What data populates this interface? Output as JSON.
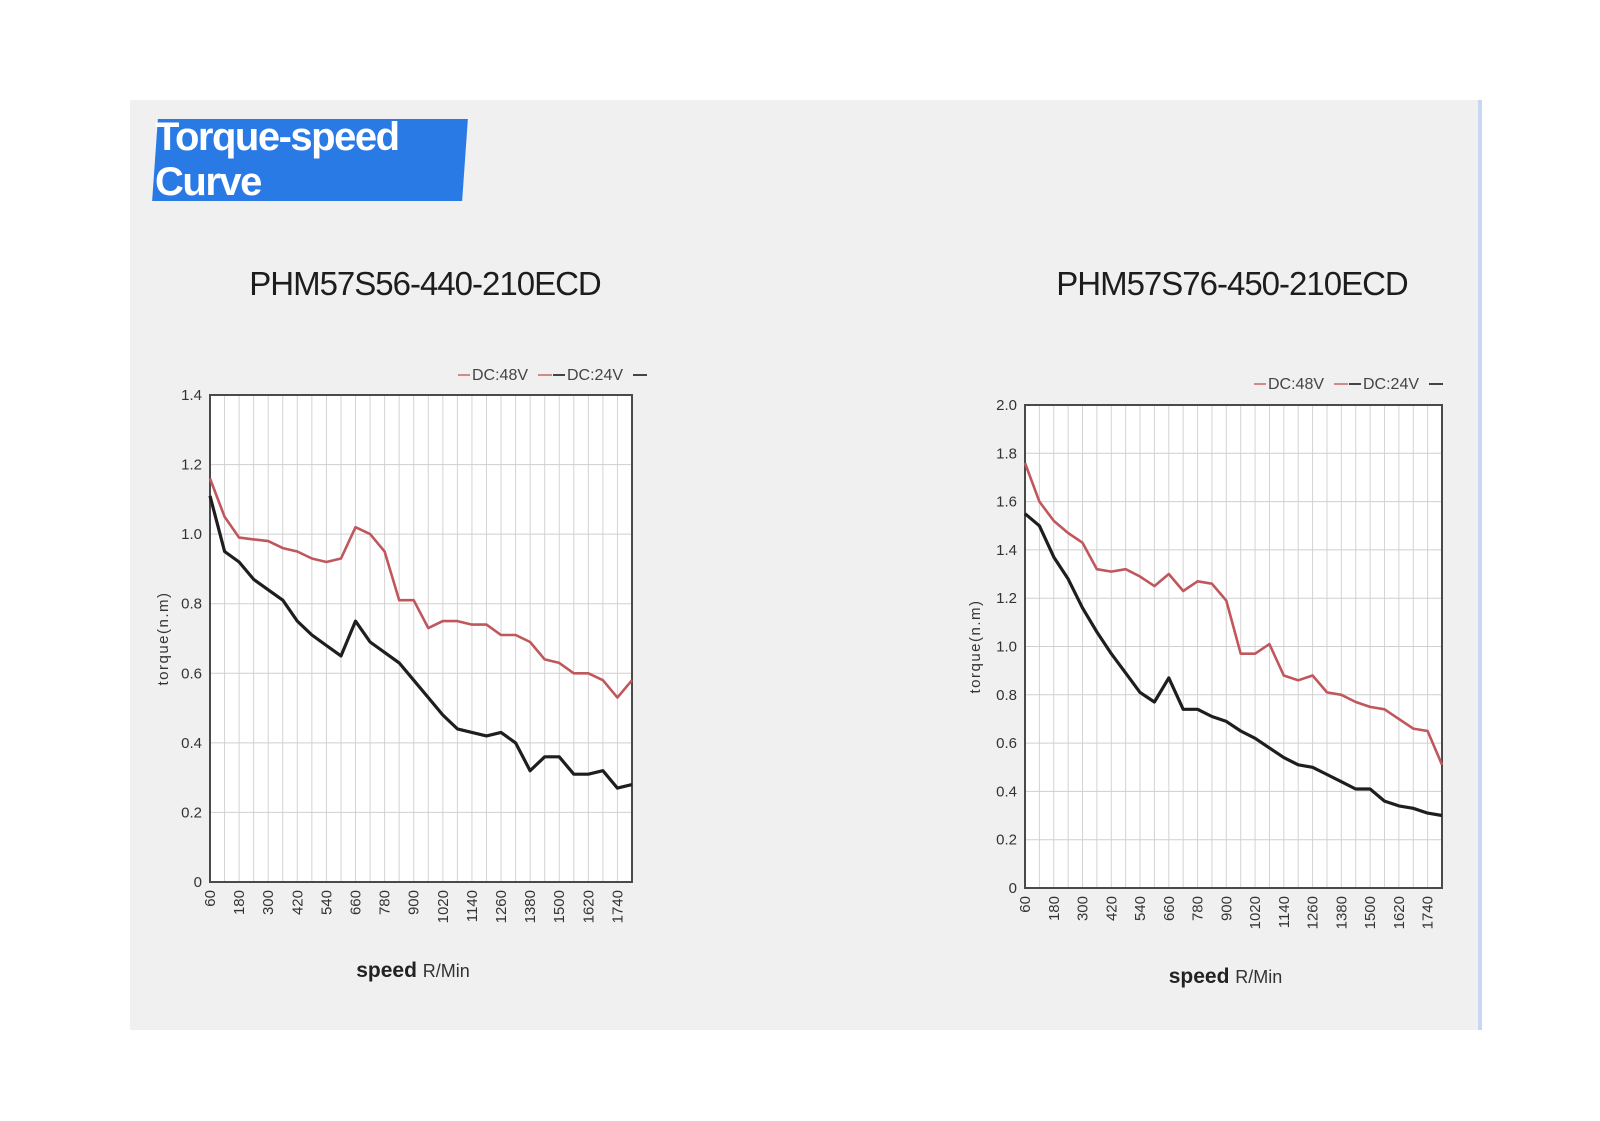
{
  "section_title": "Torque-speed Curve",
  "colors": {
    "accent": "#2a7ae6",
    "series_48v": "#c0575c",
    "series_24v": "#1e1e1e"
  },
  "chart_data": [
    {
      "type": "line",
      "title": "PHM57S56-440-210ECD",
      "xlabel_bold": "speed",
      "xlabel_unit": "R/Min",
      "ylabel": "torque(n.m)",
      "x_ticks": [
        "60",
        "180",
        "300",
        "420",
        "540",
        "660",
        "780",
        "900",
        "1020",
        "1140",
        "1260",
        "1380",
        "1500",
        "1620",
        "1740"
      ],
      "y_ticks": [
        "0",
        "0.2",
        "0.4",
        "0.6",
        "0.8",
        "1.0",
        "1.2",
        "1.4"
      ],
      "xlim": [
        60,
        1800
      ],
      "ylim": [
        0,
        1.4
      ],
      "grid": true,
      "legend_position": "top-right",
      "x": [
        60,
        120,
        180,
        240,
        300,
        360,
        420,
        480,
        540,
        600,
        660,
        720,
        780,
        840,
        900,
        960,
        1020,
        1080,
        1140,
        1200,
        1260,
        1320,
        1380,
        1440,
        1500,
        1560,
        1620,
        1680,
        1740,
        1800
      ],
      "series": [
        {
          "name": "DC:48V",
          "color": "#c0575c",
          "values": [
            1.16,
            1.05,
            0.99,
            0.985,
            0.98,
            0.96,
            0.95,
            0.93,
            0.92,
            0.93,
            1.02,
            1.0,
            0.95,
            0.81,
            0.81,
            0.73,
            0.75,
            0.75,
            0.74,
            0.74,
            0.71,
            0.71,
            0.69,
            0.64,
            0.63,
            0.6,
            0.6,
            0.58,
            0.53,
            0.58
          ]
        },
        {
          "name": "DC:24V",
          "color": "#1e1e1e",
          "values": [
            1.11,
            0.95,
            0.92,
            0.87,
            0.84,
            0.81,
            0.75,
            0.71,
            0.68,
            0.65,
            0.75,
            0.69,
            0.66,
            0.63,
            0.58,
            0.53,
            0.48,
            0.44,
            0.43,
            0.42,
            0.43,
            0.4,
            0.32,
            0.36,
            0.36,
            0.31,
            0.31,
            0.32,
            0.27,
            0.28
          ]
        }
      ]
    },
    {
      "type": "line",
      "title": "PHM57S76-450-210ECD",
      "xlabel_bold": "speed",
      "xlabel_unit": "R/Min",
      "ylabel": "torque(n.m)",
      "x_ticks": [
        "60",
        "180",
        "300",
        "420",
        "540",
        "660",
        "780",
        "900",
        "1020",
        "1140",
        "1260",
        "1380",
        "1500",
        "1620",
        "1740"
      ],
      "y_ticks": [
        "0",
        "0.2",
        "0.4",
        "0.6",
        "0.8",
        "1.0",
        "1.2",
        "1.4",
        "1.6",
        "1.8",
        "2.0"
      ],
      "xlim": [
        60,
        1800
      ],
      "ylim": [
        0,
        2.0
      ],
      "grid": true,
      "legend_position": "top-right",
      "x": [
        60,
        120,
        180,
        240,
        300,
        360,
        420,
        480,
        540,
        600,
        660,
        720,
        780,
        840,
        900,
        960,
        1020,
        1080,
        1140,
        1200,
        1260,
        1320,
        1380,
        1440,
        1500,
        1560,
        1620,
        1680,
        1740,
        1800
      ],
      "series": [
        {
          "name": "DC:48V",
          "color": "#c0575c",
          "values": [
            1.76,
            1.6,
            1.52,
            1.47,
            1.43,
            1.32,
            1.31,
            1.32,
            1.29,
            1.25,
            1.3,
            1.23,
            1.27,
            1.26,
            1.19,
            0.97,
            0.97,
            1.01,
            0.88,
            0.86,
            0.88,
            0.81,
            0.8,
            0.77,
            0.75,
            0.74,
            0.7,
            0.66,
            0.65,
            0.51
          ]
        },
        {
          "name": "DC:24V",
          "color": "#1e1e1e",
          "values": [
            1.55,
            1.5,
            1.37,
            1.28,
            1.16,
            1.06,
            0.97,
            0.89,
            0.81,
            0.77,
            0.87,
            0.74,
            0.74,
            0.71,
            0.69,
            0.65,
            0.62,
            0.58,
            0.54,
            0.51,
            0.5,
            0.47,
            0.44,
            0.41,
            0.41,
            0.36,
            0.34,
            0.33,
            0.31,
            0.3
          ]
        }
      ]
    }
  ]
}
